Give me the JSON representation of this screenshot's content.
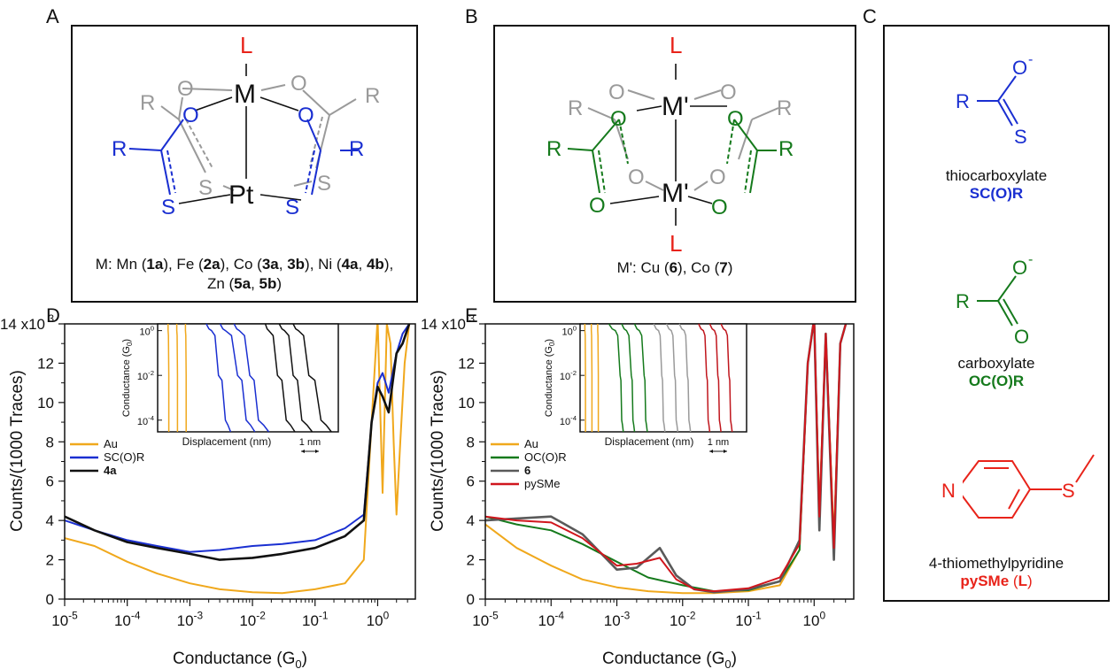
{
  "panels": {
    "a": {
      "letter": "A",
      "metal": "M",
      "axial_ligand": "L",
      "center": "Pt",
      "caption_1": "M: Mn (",
      "c1a": "1a",
      "c1b": "), Fe (",
      "c2a": "2a",
      "c2b": "), Co (",
      "c3a": "3a",
      "c3c": ", ",
      "c3b": "3b",
      "c3d": "), Ni (",
      "c4a": "4a",
      "c4c": ", ",
      "c4b": "4b",
      "c4d": "),",
      "caption_2a": "Zn (",
      "c5a": "5a",
      "c5c": ", ",
      "c5b": "5b",
      "c5d": ")"
    },
    "b": {
      "letter": "B",
      "metal": "M'",
      "axial_ligand": "L",
      "caption_a": "M': Cu (",
      "c6": "6",
      "cmid": "), Co (",
      "c7": "7",
      "cend": ")"
    },
    "c": {
      "letter": "C",
      "thio_name": "thiocarboxylate",
      "thio_abbr": "SC(O)R",
      "carb_name": "carboxylate",
      "carb_abbr": "OC(O)R",
      "pyr_name": "4-thiomethylpyridine",
      "pyr_abbr": "pySMe",
      "pyr_l_open": " (",
      "pyr_l": "L",
      "pyr_l_close": ")",
      "atoms": {
        "R": "R",
        "O": "O",
        "S": "S",
        "N": "N",
        "minus": "-"
      }
    },
    "d": {
      "letter": "D"
    },
    "e": {
      "letter": "E"
    }
  },
  "colors": {
    "au": "#f0a81c",
    "thio": "#1a2fd1",
    "ni": "#111111",
    "carb": "#157a1c",
    "cu": "#5a5a5a",
    "pysme": "#d0161d",
    "ligand_red": "#e8231a",
    "gray": "#9a9a9a"
  },
  "chart_data": [
    {
      "type": "line",
      "panel": "D",
      "xlabel": "Conductance (G",
      "xlabel_sub": "0",
      "xlabel_close": ")",
      "ylabel": "Counts/(1000 Traces)",
      "xscale": "log",
      "xlim": [
        1e-05,
        4
      ],
      "ylim": [
        0,
        14000
      ],
      "x_ticks": [
        {
          "b": "10",
          "e": "-5"
        },
        {
          "b": "10",
          "e": "-4"
        },
        {
          "b": "10",
          "e": "-3"
        },
        {
          "b": "10",
          "e": "-2"
        },
        {
          "b": "10",
          "e": "-1"
        },
        {
          "b": "10",
          "e": "0"
        }
      ],
      "y_ticks": [
        "0",
        "2",
        "4",
        "6",
        "8",
        "10",
        "12",
        "14 x10"
      ],
      "y_top_exp": "3",
      "legend": "left",
      "series": [
        {
          "name": "Au",
          "color": "#f0a81c",
          "x": [
            1e-05,
            3e-05,
            0.0001,
            0.0003,
            0.001,
            0.003,
            0.01,
            0.03,
            0.1,
            0.3,
            0.6,
            0.8,
            1.0,
            1.2,
            1.4,
            1.6,
            1.8,
            2.0,
            2.3,
            2.7,
            3.2
          ],
          "y": [
            3100,
            2700,
            1900,
            1300,
            800,
            500,
            350,
            300,
            500,
            800,
            2000,
            9000,
            15000,
            5400,
            14000,
            13000,
            8000,
            4300,
            8000,
            12000,
            14000
          ]
        },
        {
          "name": "SC(O)R",
          "color": "#1a2fd1",
          "x": [
            1e-05,
            3e-05,
            0.0001,
            0.0003,
            0.001,
            0.003,
            0.01,
            0.03,
            0.1,
            0.3,
            0.6,
            0.8,
            1.0,
            1.2,
            1.5,
            2.0,
            2.5,
            3.2
          ],
          "y": [
            4000,
            3500,
            3000,
            2700,
            2400,
            2500,
            2700,
            2800,
            3000,
            3600,
            4300,
            9000,
            11000,
            11500,
            10500,
            12500,
            13500,
            14000
          ]
        },
        {
          "name": "4a",
          "bold": true,
          "color": "#111111",
          "x": [
            1e-05,
            3e-05,
            0.0001,
            0.0003,
            0.001,
            0.003,
            0.01,
            0.03,
            0.1,
            0.3,
            0.6,
            0.8,
            1.0,
            1.2,
            1.5,
            2.0,
            2.5,
            3.2
          ],
          "y": [
            4200,
            3500,
            2900,
            2600,
            2300,
            2000,
            2100,
            2300,
            2600,
            3200,
            4000,
            9000,
            10800,
            10300,
            9500,
            12500,
            13000,
            14000
          ]
        }
      ],
      "inset": {
        "ylabel": "Conductance (G",
        "ylabel_sub": "0",
        "ylabel_close": ")",
        "xlabel": "Displacement (nm)",
        "scale_label": "1 nm",
        "ylim": [
          3e-05,
          2
        ],
        "y_ticks": [
          {
            "b": "10",
            "e": "0"
          },
          {
            "b": "10",
            "e": "-2"
          },
          {
            "b": "10",
            "e": "-4"
          }
        ],
        "traces": [
          {
            "color": "#f0a81c",
            "x": [
              0.3,
              0.3,
              0.32,
              0.32,
              0.32
            ]
          },
          {
            "color": "#f0a81c",
            "x": [
              0.55,
              0.55,
              0.57,
              0.57,
              0.57
            ]
          },
          {
            "color": "#f0a81c",
            "x": [
              0.8,
              0.8,
              0.82,
              0.82,
              0.82
            ]
          },
          {
            "color": "#1a2fd1",
            "x": [
              1.4,
              1.55,
              1.75,
              1.95,
              2.1
            ]
          },
          {
            "color": "#1a2fd1",
            "x": [
              1.8,
              1.95,
              2.3,
              2.55,
              2.8
            ]
          },
          {
            "color": "#1a2fd1",
            "x": [
              2.2,
              2.35,
              2.65,
              2.9,
              3.2
            ]
          },
          {
            "color": "#111111",
            "x": [
              3.1,
              3.2,
              3.45,
              3.7,
              3.95
            ]
          },
          {
            "color": "#111111",
            "x": [
              3.5,
              3.65,
              3.9,
              4.15,
              4.45
            ]
          },
          {
            "color": "#111111",
            "x": [
              3.9,
              4.05,
              4.35,
              4.7,
              5.0
            ]
          }
        ]
      }
    },
    {
      "type": "line",
      "panel": "E",
      "xlabel": "Conductance (G",
      "xlabel_sub": "0",
      "xlabel_close": ")",
      "ylabel": "Counts/(1000 Traces)",
      "xscale": "log",
      "xlim": [
        1e-05,
        4
      ],
      "ylim": [
        0,
        14000
      ],
      "x_ticks": [
        {
          "b": "10",
          "e": "-5"
        },
        {
          "b": "10",
          "e": "-4"
        },
        {
          "b": "10",
          "e": "-3"
        },
        {
          "b": "10",
          "e": "-2"
        },
        {
          "b": "10",
          "e": "-1"
        },
        {
          "b": "10",
          "e": "0"
        }
      ],
      "y_ticks": [
        "0",
        "2",
        "4",
        "6",
        "8",
        "10",
        "12",
        "14 x10"
      ],
      "y_top_exp": "3",
      "legend": "left",
      "series": [
        {
          "name": "Au",
          "color": "#f0a81c",
          "x": [
            1e-05,
            3e-05,
            0.0001,
            0.0003,
            0.001,
            0.003,
            0.01,
            0.03,
            0.1,
            0.3,
            0.6,
            0.8,
            1.0,
            1.2,
            1.5,
            2.0,
            2.5,
            3.2
          ],
          "y": [
            3800,
            2600,
            1700,
            1000,
            600,
            400,
            300,
            300,
            400,
            700,
            2500,
            12000,
            16000,
            4500,
            13500,
            3000,
            13000,
            16000
          ]
        },
        {
          "name": "OC(O)R",
          "color": "#157a1c",
          "x": [
            1e-05,
            3e-05,
            0.0001,
            0.0003,
            0.001,
            0.003,
            0.01,
            0.03,
            0.1,
            0.3,
            0.6,
            0.8,
            1.0,
            1.2,
            1.5,
            2.0,
            2.5,
            3.2
          ],
          "y": [
            4200,
            3800,
            3500,
            2800,
            1900,
            1100,
            700,
            400,
            450,
            900,
            2500,
            12000,
            16000,
            4000,
            13500,
            2500,
            13000,
            16000
          ]
        },
        {
          "name": "6",
          "bold": true,
          "color": "#5a5a5a",
          "x": [
            1e-05,
            3e-05,
            0.0001,
            0.0003,
            0.001,
            0.002,
            0.0045,
            0.008,
            0.015,
            0.03,
            0.1,
            0.3,
            0.6,
            0.8,
            1.0,
            1.2,
            1.5,
            2.0,
            2.5,
            3.2
          ],
          "y": [
            4000,
            4100,
            4200,
            3300,
            1500,
            1600,
            2600,
            1200,
            500,
            350,
            500,
            900,
            3000,
            12000,
            16000,
            3500,
            13500,
            2000,
            13000,
            16000
          ]
        },
        {
          "name": "pySMe",
          "color": "#d0161d",
          "x": [
            1e-05,
            3e-05,
            0.0001,
            0.0003,
            0.001,
            0.002,
            0.0045,
            0.008,
            0.015,
            0.03,
            0.1,
            0.3,
            0.6,
            0.8,
            1.0,
            1.2,
            1.5,
            2.0,
            2.5,
            3.2
          ],
          "y": [
            4200,
            4000,
            3900,
            3100,
            1700,
            1800,
            2100,
            1000,
            500,
            400,
            550,
            1100,
            2800,
            12000,
            16000,
            4200,
            13500,
            2600,
            13000,
            16000
          ]
        }
      ],
      "inset": {
        "ylabel": "Conductance (G",
        "ylabel_sub": "0",
        "ylabel_close": ")",
        "xlabel": "Displacement (nm)",
        "scale_label": "1 nm",
        "ylim": [
          3e-05,
          2
        ],
        "y_ticks": [
          {
            "b": "10",
            "e": "0"
          },
          {
            "b": "10",
            "e": "-2"
          },
          {
            "b": "10",
            "e": "-4"
          }
        ],
        "traces": [
          {
            "color": "#f0a81c",
            "x": [
              0.15,
              0.15,
              0.17,
              0.17,
              0.17
            ]
          },
          {
            "color": "#f0a81c",
            "x": [
              0.35,
              0.35,
              0.37,
              0.37,
              0.37
            ]
          },
          {
            "color": "#f0a81c",
            "x": [
              0.55,
              0.55,
              0.57,
              0.57,
              0.57
            ]
          },
          {
            "color": "#157a1c",
            "x": [
              0.9,
              1.1,
              1.25,
              1.3,
              1.35
            ]
          },
          {
            "color": "#157a1c",
            "x": [
              1.3,
              1.45,
              1.6,
              1.65,
              1.7
            ]
          },
          {
            "color": "#157a1c",
            "x": [
              1.7,
              1.85,
              2.0,
              2.05,
              2.1
            ]
          },
          {
            "color": "#9a9a9a",
            "x": [
              2.3,
              2.45,
              2.55,
              2.6,
              2.65
            ]
          },
          {
            "color": "#9a9a9a",
            "x": [
              2.7,
              2.85,
              2.95,
              3.0,
              3.05
            ]
          },
          {
            "color": "#9a9a9a",
            "x": [
              3.1,
              3.25,
              3.35,
              3.4,
              3.45
            ]
          },
          {
            "color": "#c0161d",
            "x": [
              3.7,
              3.85,
              3.95,
              4.0,
              4.05
            ]
          },
          {
            "color": "#c0161d",
            "x": [
              4.05,
              4.2,
              4.3,
              4.35,
              4.4
            ]
          },
          {
            "color": "#c0161d",
            "x": [
              4.4,
              4.55,
              4.65,
              4.7,
              4.75
            ]
          }
        ]
      }
    }
  ]
}
